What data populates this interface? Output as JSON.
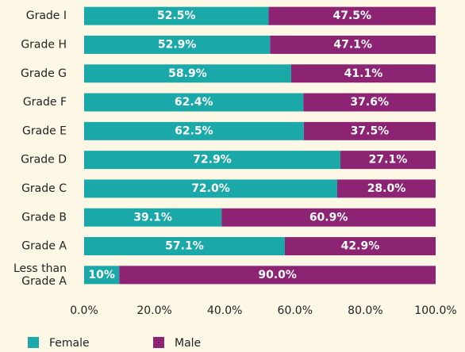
{
  "chart_data": {
    "type": "stacked_barh",
    "categories": [
      "Grade I",
      "Grade H",
      "Grade G",
      "Grade F",
      "Grade E",
      "Grade D",
      "Grade C",
      "Grade B",
      "Grade A",
      "Less than\nGrade A"
    ],
    "series": [
      {
        "name": "Female",
        "color": "#1aa9a8",
        "values": [
          52.5,
          52.9,
          58.9,
          62.4,
          62.5,
          72.9,
          72.0,
          39.1,
          57.1,
          10
        ],
        "value_labels": [
          "52.5%",
          "52.9%",
          "58.9%",
          "62.4%",
          "62.5%",
          "72.9%",
          "72.0%",
          "39.1%",
          "57.1%",
          "10%"
        ]
      },
      {
        "name": "Male",
        "color": "#8c2373",
        "values": [
          47.5,
          47.1,
          41.1,
          37.6,
          37.5,
          27.1,
          28.0,
          60.9,
          42.9,
          90.0
        ],
        "value_labels": [
          "47.5%",
          "47.1%",
          "41.1%",
          "37.6%",
          "37.5%",
          "27.1%",
          "28.0%",
          "60.9%",
          "42.9%",
          "90.0%"
        ]
      }
    ],
    "xlim": [
      0,
      100
    ],
    "xticks": [
      {
        "value": 0,
        "label": "0.0%"
      },
      {
        "value": 20,
        "label": "20.0%"
      },
      {
        "value": 40,
        "label": "40.0%"
      },
      {
        "value": 60,
        "label": "60.0%"
      },
      {
        "value": 80,
        "label": "80.0%"
      },
      {
        "value": 100,
        "label": "100.0%"
      }
    ],
    "legend": "bottom-left"
  }
}
